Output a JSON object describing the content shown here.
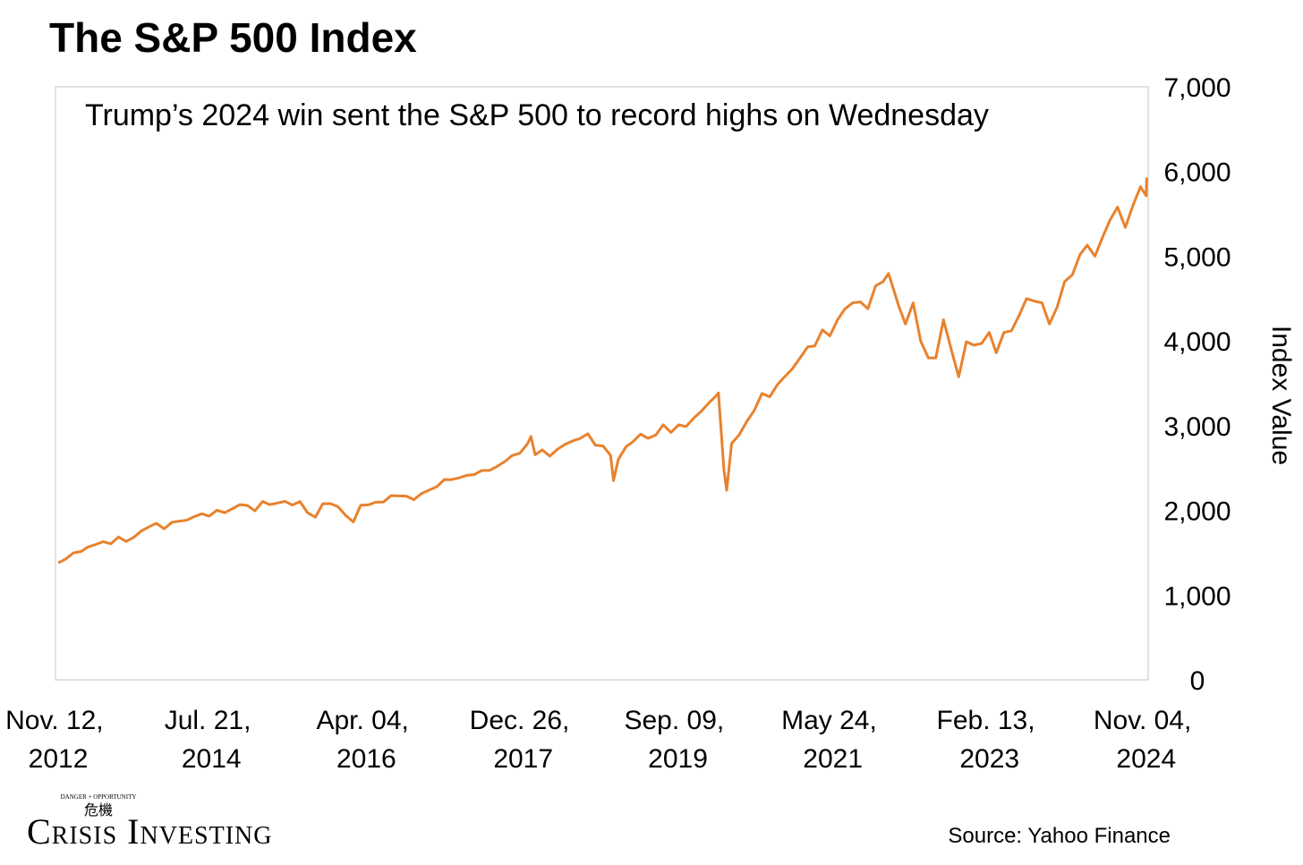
{
  "chart_data": {
    "type": "line",
    "title": "The S&P 500 Index",
    "subtitle": "Trump’s 2024 win sent the S&P 500 to record highs on Wednesday",
    "y_label": "Index Value",
    "source": "Source: Yahoo Finance",
    "logo": {
      "name": "Crisis Investing",
      "tagline": "DANGER + OPPORTUNITY",
      "mark": "危機"
    },
    "y_axis_side": "right",
    "grid": false,
    "xlim": [
      "2012-11-01",
      "2024-11-12"
    ],
    "xticks": [
      {
        "value": "2012-11-12",
        "label": "Nov. 12, 2012"
      },
      {
        "value": "2014-07-21",
        "label": "Jul. 21, 2014"
      },
      {
        "value": "2016-04-04",
        "label": "Apr. 04, 2016"
      },
      {
        "value": "2017-12-26",
        "label": "Dec. 26, 2017"
      },
      {
        "value": "2019-09-09",
        "label": "Sep. 09, 2019"
      },
      {
        "value": "2021-05-24",
        "label": "May 24, 2021"
      },
      {
        "value": "2023-02-13",
        "label": "Feb. 13, 2023"
      },
      {
        "value": "2024-11-04",
        "label": "Nov. 04, 2024"
      }
    ],
    "ylim": [
      0,
      7000
    ],
    "yticks": [
      0,
      {
        "value": 1000,
        "label": "1,000"
      },
      {
        "value": 2000,
        "label": "2,000"
      },
      {
        "value": 3000,
        "label": "3,000"
      },
      {
        "value": 4000,
        "label": "4,000"
      },
      {
        "value": 5000,
        "label": "5,000"
      },
      {
        "value": 6000,
        "label": "6,000"
      },
      {
        "value": 7000,
        "label": "7,000"
      }
    ],
    "x": [
      "2012-11-12",
      "2012-12-12",
      "2013-01-12",
      "2013-02-12",
      "2013-03-12",
      "2013-04-12",
      "2013-05-12",
      "2013-06-12",
      "2013-07-12",
      "2013-08-12",
      "2013-09-12",
      "2013-10-12",
      "2013-11-12",
      "2013-12-12",
      "2014-01-12",
      "2014-02-12",
      "2014-03-12",
      "2014-04-12",
      "2014-05-12",
      "2014-06-12",
      "2014-07-12",
      "2014-08-12",
      "2014-09-12",
      "2014-10-12",
      "2014-11-12",
      "2014-12-12",
      "2015-01-12",
      "2015-02-12",
      "2015-03-12",
      "2015-04-12",
      "2015-05-12",
      "2015-06-12",
      "2015-07-12",
      "2015-08-12",
      "2015-09-12",
      "2015-10-12",
      "2015-11-12",
      "2015-12-12",
      "2016-01-12",
      "2016-02-12",
      "2016-03-12",
      "2016-04-12",
      "2016-05-12",
      "2016-06-12",
      "2016-07-12",
      "2016-08-12",
      "2016-09-12",
      "2016-10-12",
      "2016-11-12",
      "2016-12-12",
      "2017-01-12",
      "2017-02-12",
      "2017-03-12",
      "2017-04-12",
      "2017-05-12",
      "2017-06-12",
      "2017-07-12",
      "2017-08-12",
      "2017-09-12",
      "2017-10-12",
      "2017-11-12",
      "2017-12-12",
      "2018-01-12",
      "2018-01-26",
      "2018-02-12",
      "2018-03-12",
      "2018-04-12",
      "2018-05-12",
      "2018-06-12",
      "2018-07-12",
      "2018-08-12",
      "2018-09-12",
      "2018-10-12",
      "2018-11-12",
      "2018-12-12",
      "2018-12-24",
      "2019-01-12",
      "2019-02-12",
      "2019-03-12",
      "2019-04-12",
      "2019-05-12",
      "2019-06-12",
      "2019-07-12",
      "2019-08-12",
      "2019-09-12",
      "2019-10-12",
      "2019-11-12",
      "2019-12-12",
      "2020-01-12",
      "2020-02-12",
      "2020-02-19",
      "2020-03-12",
      "2020-03-23",
      "2020-04-12",
      "2020-05-12",
      "2020-06-12",
      "2020-07-12",
      "2020-08-12",
      "2020-09-12",
      "2020-10-12",
      "2020-11-12",
      "2020-12-12",
      "2021-01-12",
      "2021-02-12",
      "2021-03-12",
      "2021-04-12",
      "2021-05-12",
      "2021-06-12",
      "2021-07-12",
      "2021-08-12",
      "2021-09-12",
      "2021-10-12",
      "2021-11-12",
      "2021-12-12",
      "2022-01-03",
      "2022-02-12",
      "2022-03-12",
      "2022-04-12",
      "2022-05-12",
      "2022-06-12",
      "2022-07-12",
      "2022-08-12",
      "2022-09-12",
      "2022-10-12",
      "2022-11-12",
      "2022-12-12",
      "2023-01-12",
      "2023-02-12",
      "2023-03-12",
      "2023-04-12",
      "2023-05-12",
      "2023-06-12",
      "2023-07-12",
      "2023-08-12",
      "2023-09-12",
      "2023-10-12",
      "2023-11-12",
      "2023-12-12",
      "2024-01-12",
      "2024-02-12",
      "2024-03-12",
      "2024-04-12",
      "2024-05-12",
      "2024-06-12",
      "2024-07-12",
      "2024-08-12",
      "2024-09-12",
      "2024-10-12",
      "2024-11-04",
      "2024-11-06"
    ],
    "series": [
      {
        "name": "S&P 500",
        "color": "#e8822e",
        "values": [
          1380,
          1426,
          1498,
          1515,
          1569,
          1598,
          1631,
          1606,
          1686,
          1633,
          1682,
          1757,
          1806,
          1848,
          1783,
          1859,
          1872,
          1884,
          1924,
          1960,
          1931,
          2003,
          1972,
          2018,
          2068,
          2059,
          1995,
          2105,
          2068,
          2086,
          2107,
          2063,
          2104,
          1972,
          1920,
          2079,
          2080,
          2044,
          1940,
          1864,
          2060,
          2065,
          2097,
          2099,
          2174,
          2171,
          2168,
          2126,
          2199,
          2239,
          2279,
          2364,
          2363,
          2384,
          2412,
          2423,
          2470,
          2472,
          2519,
          2575,
          2648,
          2674,
          2786,
          2872,
          2656,
          2714,
          2641,
          2720,
          2780,
          2818,
          2850,
          2904,
          2770,
          2760,
          2650,
          2351,
          2600,
          2750,
          2810,
          2900,
          2850,
          2890,
          3010,
          2920,
          3010,
          2990,
          3090,
          3170,
          3270,
          3360,
          3386,
          2480,
          2237,
          2790,
          2890,
          3050,
          3180,
          3380,
          3340,
          3480,
          3580,
          3670,
          3800,
          3930,
          3940,
          4130,
          4060,
          4250,
          4380,
          4450,
          4460,
          4380,
          4650,
          4700,
          4797,
          4420,
          4200,
          4450,
          4000,
          3800,
          3800,
          4250,
          3900,
          3577,
          3990,
          3950,
          3970,
          4100,
          3860,
          4100,
          4120,
          4300,
          4500,
          4470,
          4450,
          4200,
          4400,
          4700,
          4780,
          5020,
          5130,
          5000,
          5220,
          5430,
          5580,
          5340,
          5600,
          5820,
          5712,
          5929
        ]
      }
    ]
  }
}
